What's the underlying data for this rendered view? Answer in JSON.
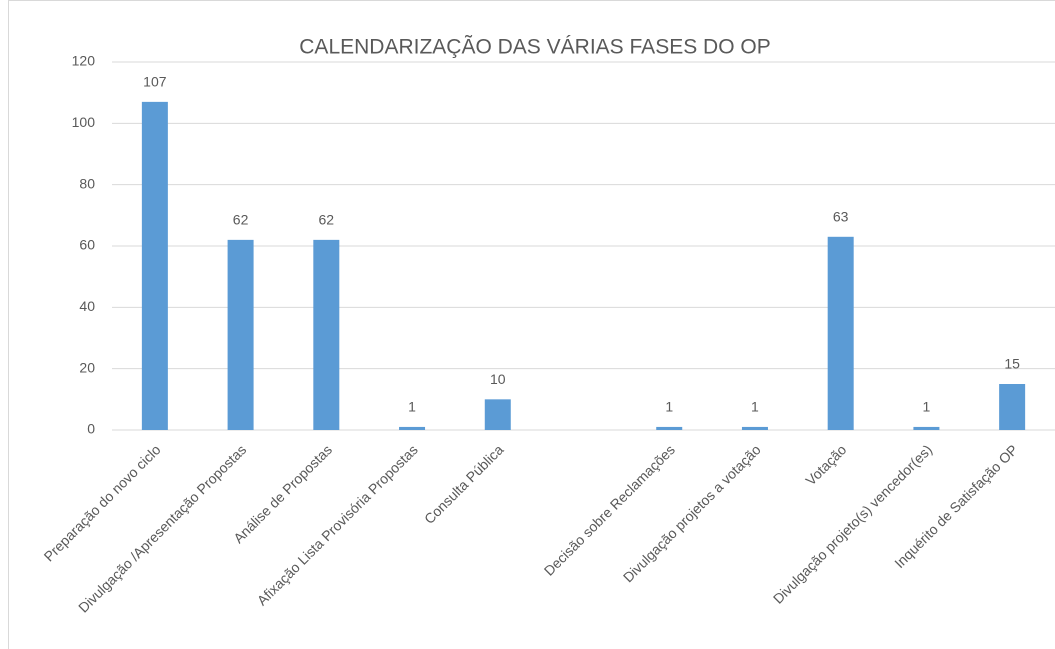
{
  "chart_data": {
    "type": "bar",
    "title": "CALENDARIZAÇÃO DAS VÁRIAS FASES DO OP",
    "categories": [
      "Preparação do novo ciclo",
      "Divulgação /Apresentação Propostas",
      "Análise de Propostas",
      "Afixação Lista Provisória Propostas",
      "Consulta Pública",
      null,
      "Decisão sobre Reclamações",
      "Divulgação projetos a votação",
      "Votação",
      "Divulgação projeto(s) vencedor(es)",
      "Inquérito de Satisfação OP"
    ],
    "values": [
      107,
      62,
      62,
      1,
      10,
      null,
      1,
      1,
      63,
      1,
      15
    ],
    "color": "#5b9bd5",
    "ylim": [
      0,
      120
    ],
    "yticks": [
      0,
      20,
      40,
      60,
      80,
      100,
      120
    ],
    "grid": true
  }
}
